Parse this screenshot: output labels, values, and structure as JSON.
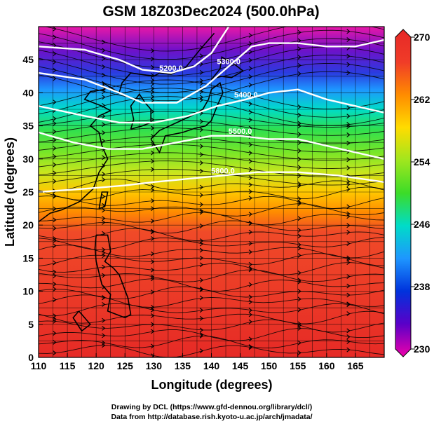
{
  "chart_data": {
    "type": "heatmap",
    "title": "GSM 18Z03Dec2024 (500.0hPa)",
    "xlabel": "Longitude (degrees)",
    "ylabel": "Latitude (degrees)",
    "xlim": [
      110,
      170
    ],
    "ylim": [
      0,
      50
    ],
    "xticks": [
      110,
      115,
      120,
      125,
      130,
      135,
      140,
      145,
      150,
      155,
      160,
      165
    ],
    "yticks": [
      0,
      5,
      10,
      15,
      20,
      25,
      30,
      35,
      40,
      45
    ],
    "grid": true,
    "colorbar": {
      "ticks": [
        230,
        238,
        246,
        254,
        262,
        270
      ],
      "min": 230,
      "max": 270,
      "colors": [
        "#ee00aa",
        "#5a00c8",
        "#0032dc",
        "#1e96ff",
        "#00dcc8",
        "#3cdc28",
        "#a0e61e",
        "#ffdc00",
        "#ff8c00",
        "#f03c28",
        "#e62828"
      ]
    },
    "contours": [
      {
        "label": "5200.0",
        "points": [
          [
            110,
            47
          ],
          [
            118,
            46.5
          ],
          [
            124,
            45
          ],
          [
            128,
            43.5
          ],
          [
            133,
            43
          ],
          [
            137,
            44
          ],
          [
            140,
            46
          ],
          [
            143,
            50
          ]
        ]
      },
      {
        "label": "5300.0",
        "points": [
          [
            110,
            43
          ],
          [
            118,
            42
          ],
          [
            124,
            40
          ],
          [
            128,
            38.5
          ],
          [
            134,
            38.5
          ],
          [
            139,
            41
          ],
          [
            143,
            44
          ],
          [
            147,
            47
          ],
          [
            150,
            47.5
          ],
          [
            155,
            47.5
          ],
          [
            160,
            47
          ],
          [
            165,
            47
          ],
          [
            170,
            48
          ]
        ]
      },
      {
        "label": "5400.0",
        "points": [
          [
            110,
            38
          ],
          [
            118,
            36.5
          ],
          [
            124,
            35.5
          ],
          [
            130,
            35.5
          ],
          [
            136,
            36.5
          ],
          [
            141,
            38
          ],
          [
            146,
            39
          ],
          [
            150,
            40
          ],
          [
            155,
            40.5
          ],
          [
            160,
            39
          ],
          [
            165,
            38
          ],
          [
            170,
            37
          ]
        ]
      },
      {
        "label": "5500.0",
        "points": [
          [
            110,
            34
          ],
          [
            116,
            32.5
          ],
          [
            122,
            31.5
          ],
          [
            128,
            31.5
          ],
          [
            134,
            32.5
          ],
          [
            140,
            33.5
          ],
          [
            145,
            33.5
          ],
          [
            150,
            33
          ],
          [
            155,
            33
          ],
          [
            160,
            32
          ],
          [
            165,
            31
          ],
          [
            170,
            30
          ]
        ]
      },
      {
        "label": "5800.0",
        "points": [
          [
            110,
            25
          ],
          [
            118,
            25.5
          ],
          [
            125,
            26
          ],
          [
            130,
            26.5
          ],
          [
            136,
            27
          ],
          [
            142,
            27.5
          ],
          [
            148,
            28
          ],
          [
            155,
            28
          ],
          [
            162,
            27.5
          ],
          [
            170,
            26.5
          ]
        ]
      }
    ],
    "credits": [
      "Drawing by DCL (https://www.gfd-dennou.org/library/dcl/)",
      "Data from http://database.rish.kyoto-u.ac.jp/arch/jmadata/"
    ]
  }
}
